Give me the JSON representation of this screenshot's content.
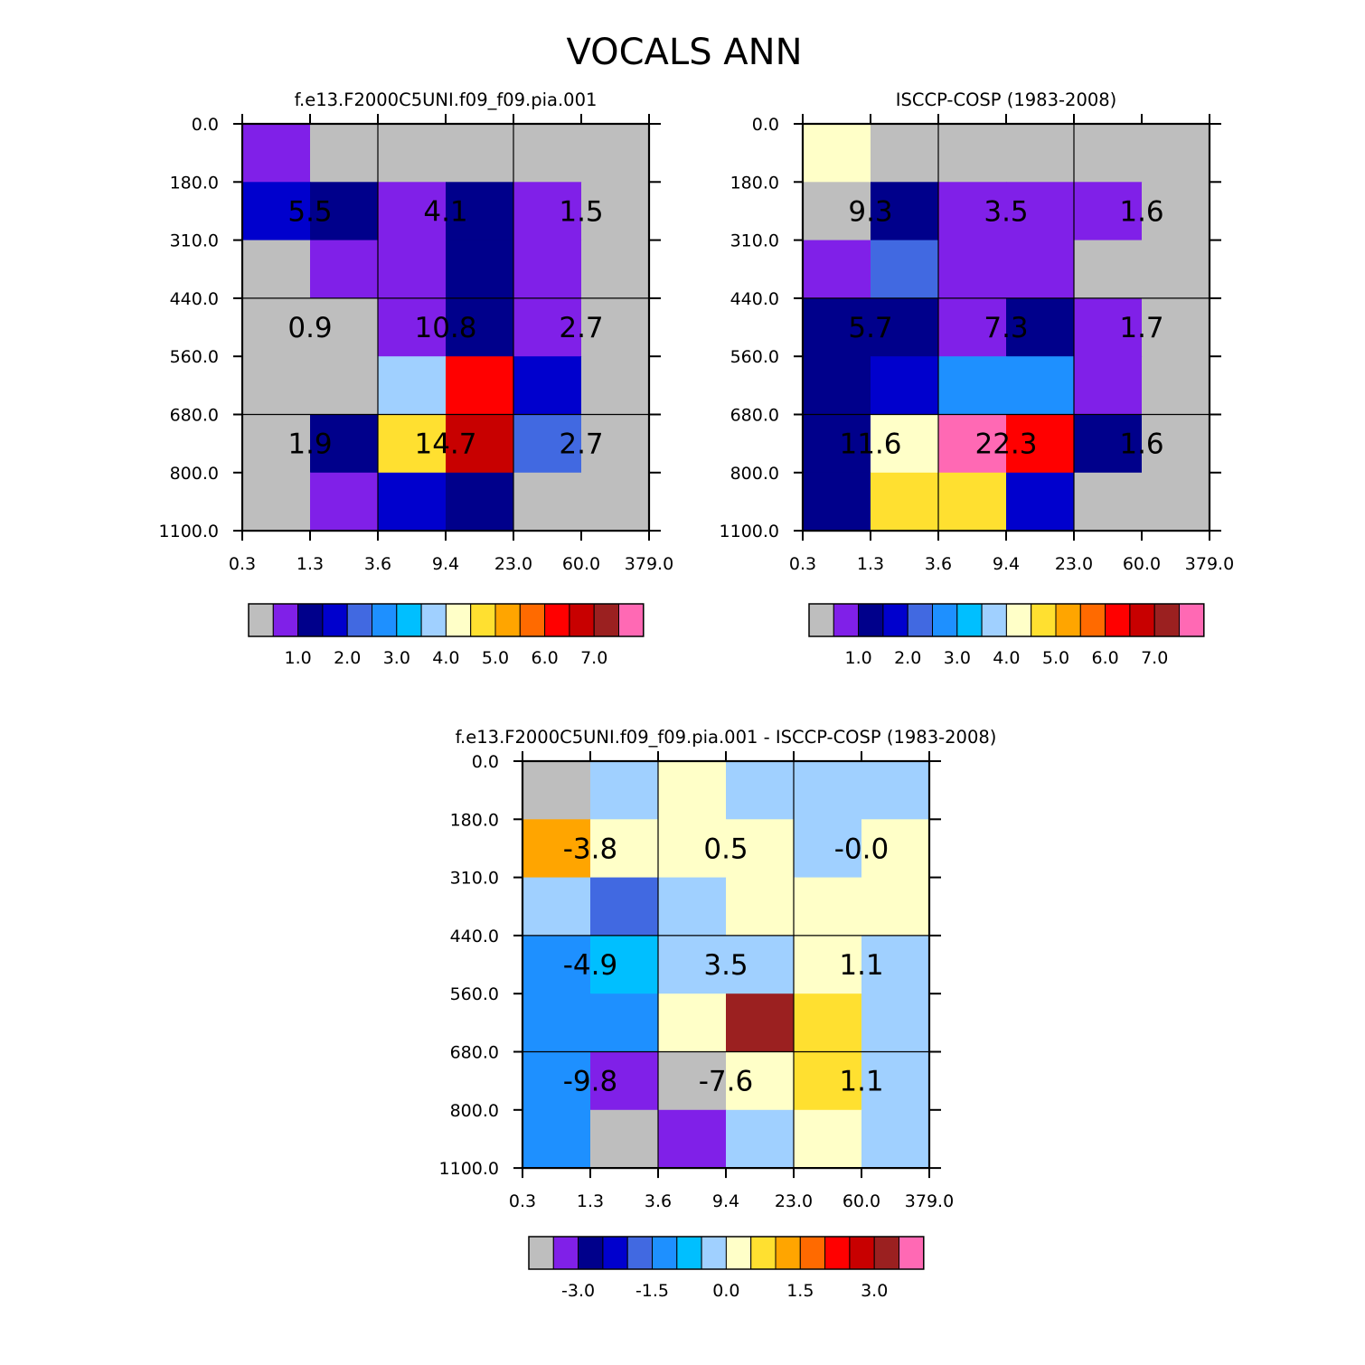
{
  "figure": {
    "title": "VOCALS ANN"
  },
  "chart_data": [
    {
      "type": "heatmap",
      "title": "f.e13.F2000C5UNI.f09_f09.pia.001",
      "x_ticks": [
        "0.3",
        "1.3",
        "3.6",
        "9.4",
        "23.0",
        "60.0",
        "379.0"
      ],
      "y_ticks": [
        "0.0",
        "180.0",
        "310.0",
        "440.0",
        "560.0",
        "680.0",
        "800.0",
        "1100.0"
      ],
      "cells": [
        [
          1,
          0,
          0,
          0,
          0,
          0
        ],
        [
          3,
          2,
          1,
          2,
          1,
          0
        ],
        [
          0,
          1,
          1,
          2,
          1,
          0
        ],
        [
          0,
          0,
          1,
          2,
          1,
          0
        ],
        [
          0,
          0,
          7,
          12,
          3,
          0
        ],
        [
          0,
          2,
          9,
          13,
          4,
          0
        ],
        [
          0,
          1,
          3,
          2,
          0,
          0
        ]
      ],
      "cell_labels": [
        [
          "5.5",
          "4.1",
          "1.5"
        ],
        [
          "0.9",
          "10.8",
          "2.7"
        ],
        [
          "1.9",
          "14.7",
          "2.7"
        ]
      ],
      "colorbar": {
        "colors": [
          "#bebebe",
          "#8020e8",
          "#00008b",
          "#0000cd",
          "#4169e1",
          "#1e90ff",
          "#00bfff",
          "#a0d0ff",
          "#ffffc8",
          "#ffe030",
          "#ffa500",
          "#ff6a00",
          "#ff0000",
          "#c80000",
          "#9b2020",
          "#ff69b4"
        ],
        "tick_labels": [
          "1.0",
          "2.0",
          "3.0",
          "4.0",
          "5.0",
          "6.0",
          "7.0"
        ]
      }
    },
    {
      "type": "heatmap",
      "title": "ISCCP-COSP (1983-2008)",
      "x_ticks": [
        "0.3",
        "1.3",
        "3.6",
        "9.4",
        "23.0",
        "60.0",
        "379.0"
      ],
      "y_ticks": [
        "0.0",
        "180.0",
        "310.0",
        "440.0",
        "560.0",
        "680.0",
        "800.0",
        "1100.0"
      ],
      "cells": [
        [
          8,
          0,
          0,
          0,
          0,
          0
        ],
        [
          0,
          2,
          1,
          1,
          1,
          0
        ],
        [
          1,
          4,
          1,
          1,
          0,
          0
        ],
        [
          2,
          2,
          1,
          2,
          1,
          0
        ],
        [
          2,
          3,
          5,
          5,
          1,
          0
        ],
        [
          2,
          8,
          15,
          12,
          2,
          0
        ],
        [
          2,
          9,
          9,
          3,
          0,
          0
        ]
      ],
      "cell_labels": [
        [
          "9.3",
          "3.5",
          "1.6"
        ],
        [
          "5.7",
          "7.3",
          "1.7"
        ],
        [
          "11.6",
          "22.3",
          "1.6"
        ]
      ],
      "colorbar": {
        "colors": [
          "#bebebe",
          "#8020e8",
          "#00008b",
          "#0000cd",
          "#4169e1",
          "#1e90ff",
          "#00bfff",
          "#a0d0ff",
          "#ffffc8",
          "#ffe030",
          "#ffa500",
          "#ff6a00",
          "#ff0000",
          "#c80000",
          "#9b2020",
          "#ff69b4"
        ],
        "tick_labels": [
          "1.0",
          "2.0",
          "3.0",
          "4.0",
          "5.0",
          "6.0",
          "7.0"
        ]
      }
    },
    {
      "type": "heatmap",
      "title": "f.e13.F2000C5UNI.f09_f09.pia.001 - ISCCP-COSP (1983-2008)",
      "x_ticks": [
        "0.3",
        "1.3",
        "3.6",
        "9.4",
        "23.0",
        "60.0",
        "379.0"
      ],
      "y_ticks": [
        "0.0",
        "180.0",
        "310.0",
        "440.0",
        "560.0",
        "680.0",
        "800.0",
        "1100.0"
      ],
      "cells": [
        [
          0,
          7,
          8,
          7,
          7,
          7
        ],
        [
          10,
          8,
          8,
          8,
          7,
          8
        ],
        [
          7,
          4,
          7,
          8,
          8,
          8
        ],
        [
          5,
          6,
          7,
          7,
          8,
          7
        ],
        [
          5,
          5,
          8,
          14,
          9,
          7
        ],
        [
          5,
          1,
          0,
          8,
          9,
          7
        ],
        [
          5,
          0,
          1,
          7,
          8,
          7
        ]
      ],
      "cell_labels": [
        [
          "-3.8",
          "0.5",
          "-0.0"
        ],
        [
          "-4.9",
          "3.5",
          "1.1"
        ],
        [
          "-9.8",
          "-7.6",
          "1.1"
        ]
      ],
      "colorbar": {
        "colors": [
          "#bebebe",
          "#8020e8",
          "#00008b",
          "#0000cd",
          "#4169e1",
          "#1e90ff",
          "#00bfff",
          "#a0d0ff",
          "#ffffc8",
          "#ffe030",
          "#ffa500",
          "#ff6a00",
          "#ff0000",
          "#c80000",
          "#9b2020",
          "#ff69b4"
        ],
        "tick_labels": [
          "-3.0",
          "-1.5",
          "0.0",
          "1.5",
          "3.0"
        ]
      }
    }
  ]
}
